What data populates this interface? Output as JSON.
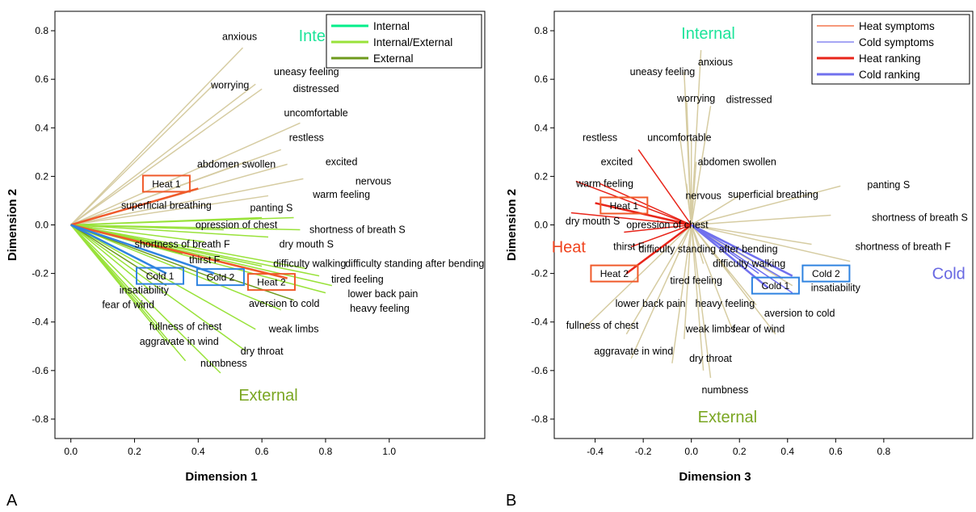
{
  "colors": {
    "internal": "#00ee8a",
    "internal_external": "#99e23a",
    "external": "#6e9a1c",
    "symptom_line": "#d6cca2",
    "heat": "#f05a2a",
    "cold": "#2f83e0",
    "cold_line": "#7070ee",
    "heat_line": "#e8251a",
    "internal_title": "#1de49a",
    "external_title": "#7aa622",
    "heat_title": "#f0441f",
    "cold_title": "#6868e2"
  },
  "chart_data": [
    {
      "type": "scatter",
      "panel": "A",
      "xlabel": "Dimension 1",
      "ylabel": "Dimension 2",
      "xlim": [
        -0.05,
        1.3
      ],
      "ylim": [
        -0.88,
        0.88
      ],
      "xticks": [
        "0.0",
        "0.2",
        "0.4",
        "0.6",
        "0.8",
        "1.0"
      ],
      "xtick_values": [
        0,
        0.2,
        0.4,
        0.6,
        0.8,
        1.0
      ],
      "yticks": [
        "-0.8",
        "-0.6",
        "-0.4",
        "-0.2",
        "0.0",
        "0.2",
        "0.4",
        "0.6",
        "0.8"
      ],
      "ytick_values": [
        -0.8,
        -0.6,
        -0.4,
        -0.2,
        0,
        0.2,
        0.4,
        0.6,
        0.8
      ],
      "region_labels": [
        {
          "text": "Internal",
          "x": 0.8,
          "y": 0.78,
          "color": "internal_title"
        },
        {
          "text": "External",
          "x": 0.62,
          "y": -0.7,
          "color": "external_title"
        }
      ],
      "legend": [
        {
          "label": "Internal",
          "color": "internal"
        },
        {
          "label": "Internal/External",
          "color": "internal_external"
        },
        {
          "label": "External",
          "color": "external"
        }
      ],
      "legend_placement": "top-right",
      "vectors": [
        {
          "x": 0.54,
          "y": 0.73,
          "color": "symptom_line"
        },
        {
          "x": 0.58,
          "y": 0.58,
          "color": "symptom_line"
        },
        {
          "x": 0.6,
          "y": 0.56,
          "color": "symptom_line"
        },
        {
          "x": 0.45,
          "y": 0.58,
          "color": "symptom_line"
        },
        {
          "x": 0.72,
          "y": 0.42,
          "color": "symptom_line"
        },
        {
          "x": 0.66,
          "y": 0.31,
          "color": "symptom_line"
        },
        {
          "x": 0.55,
          "y": 0.26,
          "color": "symptom_line"
        },
        {
          "x": 0.68,
          "y": 0.25,
          "color": "symptom_line"
        },
        {
          "x": 0.73,
          "y": 0.19,
          "color": "symptom_line"
        },
        {
          "x": 0.62,
          "y": 0.12,
          "color": "symptom_line"
        },
        {
          "x": 0.6,
          "y": 0.03,
          "color": "internal_external"
        },
        {
          "x": 0.7,
          "y": 0.03,
          "color": "internal_external"
        },
        {
          "x": 0.48,
          "y": -0.02,
          "color": "internal_external"
        },
        {
          "x": 0.72,
          "y": -0.02,
          "color": "internal_external"
        },
        {
          "x": 0.62,
          "y": -0.05,
          "color": "internal_external"
        },
        {
          "x": 0.42,
          "y": -0.07,
          "color": "internal_external"
        },
        {
          "x": 0.35,
          "y": -0.12,
          "color": "external"
        },
        {
          "x": 0.36,
          "y": -0.16,
          "color": "internal_external"
        },
        {
          "x": 0.6,
          "y": -0.17,
          "color": "internal_external"
        },
        {
          "x": 0.74,
          "y": -0.18,
          "color": "internal_external"
        },
        {
          "x": 0.78,
          "y": -0.21,
          "color": "internal_external"
        },
        {
          "x": 0.82,
          "y": -0.25,
          "color": "internal_external"
        },
        {
          "x": 0.8,
          "y": -0.28,
          "color": "internal_external"
        },
        {
          "x": 0.7,
          "y": -0.31,
          "color": "external"
        },
        {
          "x": 0.25,
          "y": -0.27,
          "color": "internal_external"
        },
        {
          "x": 0.23,
          "y": -0.33,
          "color": "internal_external"
        },
        {
          "x": 0.66,
          "y": -0.35,
          "color": "internal_external"
        },
        {
          "x": 0.28,
          "y": -0.42,
          "color": "internal_external"
        },
        {
          "x": 0.58,
          "y": -0.43,
          "color": "internal_external"
        },
        {
          "x": 0.3,
          "y": -0.48,
          "color": "internal_external"
        },
        {
          "x": 0.55,
          "y": -0.52,
          "color": "internal_external"
        },
        {
          "x": 0.47,
          "y": -0.61,
          "color": "internal_external"
        },
        {
          "x": 0.36,
          "y": -0.56,
          "color": "internal_external"
        },
        {
          "x": 0.3,
          "y": -0.25,
          "color": "external"
        },
        {
          "x": 0.45,
          "y": -0.22,
          "color": "external"
        }
      ],
      "rank_vectors": [
        {
          "x": 0.4,
          "y": 0.15,
          "color": "heat"
        },
        {
          "x": 0.68,
          "y": -0.22,
          "color": "heat"
        },
        {
          "x": 0.3,
          "y": -0.2,
          "color": "cold"
        },
        {
          "x": 0.45,
          "y": -0.2,
          "color": "cold"
        }
      ],
      "labels": [
        {
          "text": "anxious",
          "x": 0.53,
          "y": 0.775
        },
        {
          "text": "Internal",
          "x": 0,
          "y": 0,
          "skip": true
        },
        {
          "text": "uneasy feeling",
          "x": 0.74,
          "y": 0.63
        },
        {
          "text": "worrying",
          "x": 0.5,
          "y": 0.575
        },
        {
          "text": "distressed",
          "x": 0.77,
          "y": 0.56
        },
        {
          "text": "uncomfortable",
          "x": 0.77,
          "y": 0.46
        },
        {
          "text": "restless",
          "x": 0.74,
          "y": 0.36
        },
        {
          "text": "abdomen swollen",
          "x": 0.52,
          "y": 0.25
        },
        {
          "text": "excited",
          "x": 0.85,
          "y": 0.26
        },
        {
          "text": "nervous",
          "x": 0.95,
          "y": 0.18
        },
        {
          "text": "warm feeling",
          "x": 0.85,
          "y": 0.125
        },
        {
          "text": "superficial breathing",
          "x": 0.3,
          "y": 0.08
        },
        {
          "text": "panting S",
          "x": 0.63,
          "y": 0.07
        },
        {
          "text": "opression of chest",
          "x": 0.52,
          "y": 0.0
        },
        {
          "text": "shortness of breath S",
          "x": 0.9,
          "y": -0.02
        },
        {
          "text": "shortness of breath F",
          "x": 0.35,
          "y": -0.08
        },
        {
          "text": "dry mouth S",
          "x": 0.74,
          "y": -0.08
        },
        {
          "text": "thirst F",
          "x": 0.42,
          "y": -0.145
        },
        {
          "text": "difficulty walking",
          "x": 0.75,
          "y": -0.16
        },
        {
          "text": "difficulty standing after bending",
          "x": 1.08,
          "y": -0.16
        },
        {
          "text": "tired feeling",
          "x": 0.9,
          "y": -0.225
        },
        {
          "text": "insatiability",
          "x": 0.23,
          "y": -0.27
        },
        {
          "text": "lower back pain",
          "x": 0.98,
          "y": -0.285
        },
        {
          "text": "fear of wind",
          "x": 0.18,
          "y": -0.33
        },
        {
          "text": "aversion to cold",
          "x": 0.67,
          "y": -0.325
        },
        {
          "text": "heavy feeling",
          "x": 0.97,
          "y": -0.345
        },
        {
          "text": "fullness of chest",
          "x": 0.36,
          "y": -0.42
        },
        {
          "text": "weak limbs",
          "x": 0.7,
          "y": -0.43
        },
        {
          "text": "aggravate in wind",
          "x": 0.34,
          "y": -0.48
        },
        {
          "text": "dry throat",
          "x": 0.6,
          "y": -0.52
        },
        {
          "text": "numbness",
          "x": 0.48,
          "y": -0.57
        }
      ],
      "boxes": [
        {
          "text": "Heat 1",
          "x": 0.3,
          "y": 0.17,
          "color": "heat"
        },
        {
          "text": "Cold 1",
          "x": 0.28,
          "y": -0.21,
          "color": "cold"
        },
        {
          "text": "Cold 2",
          "x": 0.47,
          "y": -0.215,
          "color": "cold"
        },
        {
          "text": "Heat 2",
          "x": 0.63,
          "y": -0.235,
          "color": "heat"
        }
      ]
    },
    {
      "type": "scatter",
      "panel": "B",
      "xlabel": "Dimension 3",
      "ylabel": "Dimension 2",
      "xlim": [
        -0.57,
        1.17
      ],
      "ylim": [
        -0.88,
        0.88
      ],
      "xticks": [
        "-0.4",
        "-0.2",
        "0.0",
        "0.2",
        "0.4",
        "0.6",
        "0.8"
      ],
      "xtick_values": [
        -0.4,
        -0.2,
        0,
        0.2,
        0.4,
        0.6,
        0.8
      ],
      "yticks": [
        "-0.8",
        "-0.6",
        "-0.4",
        "-0.2",
        "0.0",
        "0.2",
        "0.4",
        "0.6",
        "0.8"
      ],
      "ytick_values": [
        -0.8,
        -0.6,
        -0.4,
        -0.2,
        0,
        0.2,
        0.4,
        0.6,
        0.8
      ],
      "region_labels": [
        {
          "text": "Internal",
          "x": 0.07,
          "y": 0.79,
          "color": "internal_title"
        },
        {
          "text": "External",
          "x": 0.15,
          "y": -0.79,
          "color": "external_title"
        },
        {
          "text": "Heat",
          "x": -0.51,
          "y": -0.09,
          "color": "heat_title"
        },
        {
          "text": "Cold",
          "x": 1.07,
          "y": -0.2,
          "color": "cold_title"
        }
      ],
      "legend": [
        {
          "label": "Heat symptoms",
          "color": "heat",
          "thin": true
        },
        {
          "label": "Cold symptoms",
          "color": "cold_line",
          "thin": true
        },
        {
          "label": "Heat ranking",
          "color": "heat_line",
          "thin": false
        },
        {
          "label": "Cold ranking",
          "color": "cold_line",
          "thin": false
        }
      ],
      "legend_placement": "top-right",
      "vectors": [
        {
          "x": 0.04,
          "y": 0.72,
          "color": "symptom_line"
        },
        {
          "x": -0.03,
          "y": 0.63,
          "color": "symptom_line"
        },
        {
          "x": -0.02,
          "y": 0.52,
          "color": "symptom_line"
        },
        {
          "x": 0.08,
          "y": 0.49,
          "color": "symptom_line"
        },
        {
          "x": -0.05,
          "y": 0.38,
          "color": "symptom_line"
        },
        {
          "x": 0.0,
          "y": 0.36,
          "color": "symptom_line"
        },
        {
          "x": 0.02,
          "y": 0.26,
          "color": "symptom_line"
        },
        {
          "x": -0.02,
          "y": 0.17,
          "color": "symptom_line"
        },
        {
          "x": 0.2,
          "y": 0.12,
          "color": "symptom_line"
        },
        {
          "x": 0.62,
          "y": 0.16,
          "color": "symptom_line"
        },
        {
          "x": 0.58,
          "y": 0.04,
          "color": "symptom_line"
        },
        {
          "x": 0.5,
          "y": -0.08,
          "color": "symptom_line"
        },
        {
          "x": 0.2,
          "y": -0.12,
          "color": "symptom_line"
        },
        {
          "x": 0.16,
          "y": -0.2,
          "color": "symptom_line"
        },
        {
          "x": 0.05,
          "y": -0.16,
          "color": "symptom_line"
        },
        {
          "x": -0.1,
          "y": -0.22,
          "color": "symptom_line"
        },
        {
          "x": -0.45,
          "y": -0.43,
          "color": "symptom_line"
        },
        {
          "x": -0.27,
          "y": -0.45,
          "color": "symptom_line"
        },
        {
          "x": -0.03,
          "y": -0.47,
          "color": "symptom_line"
        },
        {
          "x": 0.17,
          "y": -0.43,
          "color": "symptom_line"
        },
        {
          "x": 0.27,
          "y": -0.33,
          "color": "symptom_line"
        },
        {
          "x": -0.25,
          "y": -0.55,
          "color": "symptom_line"
        },
        {
          "x": 0.05,
          "y": -0.6,
          "color": "symptom_line"
        },
        {
          "x": 0.08,
          "y": -0.63,
          "color": "symptom_line"
        },
        {
          "x": -0.08,
          "y": -0.57,
          "color": "symptom_line"
        },
        {
          "x": 0.35,
          "y": -0.45,
          "color": "symptom_line"
        },
        {
          "x": 0.42,
          "y": -0.25,
          "color": "symptom_line"
        },
        {
          "x": 0.66,
          "y": -0.15,
          "color": "symptom_line"
        },
        {
          "x": -0.5,
          "y": 0.05,
          "color": "heat_line"
        },
        {
          "x": -0.48,
          "y": 0.18,
          "color": "heat_line"
        },
        {
          "x": -0.22,
          "y": 0.31,
          "color": "heat_line"
        },
        {
          "x": -0.38,
          "y": 0.17,
          "color": "heat_line"
        },
        {
          "x": -0.28,
          "y": -0.03,
          "color": "heat_line"
        },
        {
          "x": -0.25,
          "y": -0.09,
          "color": "heat_line"
        },
        {
          "x": 0.42,
          "y": -0.28,
          "color": "cold_line"
        },
        {
          "x": 0.38,
          "y": -0.22,
          "color": "cold_line"
        },
        {
          "x": 0.28,
          "y": -0.2,
          "color": "cold_line"
        }
      ],
      "rank_vectors": [
        {
          "x": -0.4,
          "y": 0.09,
          "color": "heat_line"
        },
        {
          "x": -0.27,
          "y": -0.2,
          "color": "heat_line"
        },
        {
          "x": 0.32,
          "y": -0.26,
          "color": "cold_line"
        },
        {
          "x": 0.42,
          "y": -0.21,
          "color": "cold_line"
        }
      ],
      "labels": [
        {
          "text": "anxious",
          "x": 0.1,
          "y": 0.67
        },
        {
          "text": "uneasy feeling",
          "x": -0.12,
          "y": 0.63
        },
        {
          "text": "worrying",
          "x": 0.02,
          "y": 0.52
        },
        {
          "text": "distressed",
          "x": 0.24,
          "y": 0.515
        },
        {
          "text": "restless",
          "x": -0.38,
          "y": 0.36
        },
        {
          "text": "uncomfortable",
          "x": -0.05,
          "y": 0.36
        },
        {
          "text": "excited",
          "x": -0.31,
          "y": 0.26
        },
        {
          "text": "abdomen swollen",
          "x": 0.19,
          "y": 0.26
        },
        {
          "text": "warm feeling",
          "x": -0.36,
          "y": 0.17
        },
        {
          "text": "nervous",
          "x": 0.05,
          "y": 0.12
        },
        {
          "text": "superficial breathing",
          "x": 0.34,
          "y": 0.125
        },
        {
          "text": "panting S",
          "x": 0.82,
          "y": 0.165
        },
        {
          "text": "dry mouth S",
          "x": -0.41,
          "y": 0.015
        },
        {
          "text": "opression of chest",
          "x": -0.1,
          "y": 0.0
        },
        {
          "text": "shortness of breath S",
          "x": 0.95,
          "y": 0.03
        },
        {
          "text": "thirst F",
          "x": -0.26,
          "y": -0.09
        },
        {
          "text": "shortness of breath F",
          "x": 0.88,
          "y": -0.09
        },
        {
          "text": "difficulty standing after bending",
          "x": 0.07,
          "y": -0.1
        },
        {
          "text": "difficulty walking",
          "x": 0.24,
          "y": -0.16
        },
        {
          "text": "tired feeling",
          "x": 0.02,
          "y": -0.23
        },
        {
          "text": "insatiability",
          "x": 0.6,
          "y": -0.26
        },
        {
          "text": "lower back pain",
          "x": -0.17,
          "y": -0.325
        },
        {
          "text": "heavy feeling",
          "x": 0.14,
          "y": -0.325
        },
        {
          "text": "aversion to cold",
          "x": 0.45,
          "y": -0.365
        },
        {
          "text": "fullness of chest",
          "x": -0.37,
          "y": -0.415
        },
        {
          "text": "weak limbs",
          "x": 0.08,
          "y": -0.43
        },
        {
          "text": "fear of wind",
          "x": 0.28,
          "y": -0.43
        },
        {
          "text": "aggravate in wind",
          "x": -0.24,
          "y": -0.52
        },
        {
          "text": "dry throat",
          "x": 0.08,
          "y": -0.55
        },
        {
          "text": "numbness",
          "x": 0.14,
          "y": -0.68
        }
      ],
      "boxes": [
        {
          "text": "Heat 1",
          "x": -0.28,
          "y": 0.08,
          "color": "heat"
        },
        {
          "text": "Heat 2",
          "x": -0.32,
          "y": -0.2,
          "color": "heat"
        },
        {
          "text": "Cold 1",
          "x": 0.35,
          "y": -0.25,
          "color": "cold"
        },
        {
          "text": "Cold 2",
          "x": 0.56,
          "y": -0.2,
          "color": "cold"
        }
      ]
    }
  ],
  "panel_letters": [
    "A",
    "B"
  ]
}
